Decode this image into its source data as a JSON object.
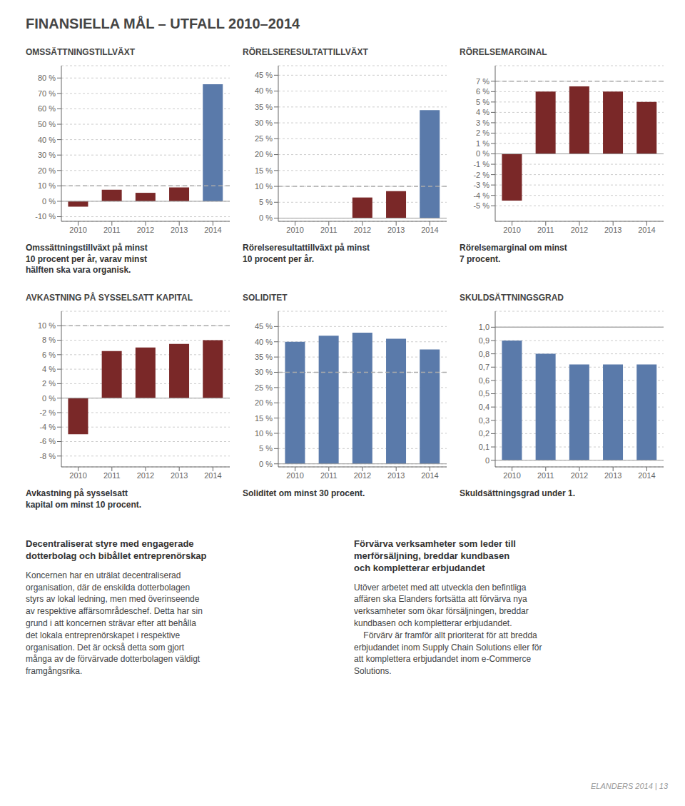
{
  "title": "FINANSIELLA MÅL – UTFALL 2010–2014",
  "chart_data": [
    {
      "type": "bar",
      "title": "OMSSÄTTNINGSTILLVÄXT",
      "subtitle": "Omssättningstillväxt på minst\n10 procent per år, varav minst\nhälften ska vara organisk.",
      "categories": [
        "2010",
        "2011",
        "2012",
        "2013",
        "2014"
      ],
      "values": [
        -3.5,
        7.5,
        5.5,
        9.0,
        76.0
      ],
      "colors": [
        "#7a2828",
        "#7a2828",
        "#7a2828",
        "#7a2828",
        "#5a7aaa"
      ],
      "ylim": [
        -13,
        88
      ],
      "yticks": [
        {
          "value": -10,
          "label": "-10 %"
        },
        {
          "value": 0,
          "label": "0 %"
        },
        {
          "value": 10,
          "label": "10 %"
        },
        {
          "value": 20,
          "label": "20 %"
        },
        {
          "value": 30,
          "label": "30 %"
        },
        {
          "value": 40,
          "label": "40 %"
        },
        {
          "value": 50,
          "label": "50 %"
        },
        {
          "value": 60,
          "label": "60 %"
        },
        {
          "value": 70,
          "label": "70 %"
        },
        {
          "value": 80,
          "label": "80 %"
        }
      ],
      "target_line": {
        "value": 10,
        "line_style": "dashed",
        "color": "#aaaaaa"
      },
      "grid": true
    },
    {
      "type": "bar",
      "title": "RÖRELSERESULTATTILLVÄXT",
      "subtitle": "Rörelseresultattillväxt på minst\n10 procent per år.",
      "categories": [
        "2010",
        "2011",
        "2012",
        "2013",
        "2014"
      ],
      "values": [
        0,
        0,
        6.5,
        8.5,
        34.0
      ],
      "colors": [
        "#7a2828",
        "#7a2828",
        "#7a2828",
        "#7a2828",
        "#5a7aaa"
      ],
      "ylim": [
        -1,
        48
      ],
      "yticks": [
        {
          "value": 0,
          "label": "0 %"
        },
        {
          "value": 5,
          "label": "5 %"
        },
        {
          "value": 10,
          "label": "10 %"
        },
        {
          "value": 15,
          "label": "15 %"
        },
        {
          "value": 20,
          "label": "20 %"
        },
        {
          "value": 25,
          "label": "25 %"
        },
        {
          "value": 30,
          "label": "30 %"
        },
        {
          "value": 35,
          "label": "35 %"
        },
        {
          "value": 40,
          "label": "40 %"
        },
        {
          "value": 45,
          "label": "45 %"
        }
      ],
      "target_line": {
        "value": 10,
        "line_style": "dashed",
        "color": "#aaaaaa"
      },
      "grid": true
    },
    {
      "type": "bar",
      "title": "RÖRELSEMARGINAL",
      "subtitle": "Rörelsemarginal om minst\n7 procent.",
      "categories": [
        "2010",
        "2011",
        "2012",
        "2013",
        "2014"
      ],
      "values": [
        -4.5,
        6.0,
        6.5,
        6.0,
        5.0
      ],
      "colors": [
        "#7a2828",
        "#7a2828",
        "#7a2828",
        "#7a2828",
        "#7a2828"
      ],
      "ylim": [
        -6.5,
        8.5
      ],
      "yticks": [
        {
          "value": -5,
          "label": "-5 %"
        },
        {
          "value": -4,
          "label": "-4 %"
        },
        {
          "value": -3,
          "label": "-3 %"
        },
        {
          "value": -2,
          "label": "-2 %"
        },
        {
          "value": -1,
          "label": "-1 %"
        },
        {
          "value": 0,
          "label": "0 %"
        },
        {
          "value": 1,
          "label": "1 %"
        },
        {
          "value": 2,
          "label": "2 %"
        },
        {
          "value": 3,
          "label": "3 %"
        },
        {
          "value": 4,
          "label": "4 %"
        },
        {
          "value": 5,
          "label": "5 %"
        },
        {
          "value": 6,
          "label": "6 %"
        },
        {
          "value": 7,
          "label": "7 %"
        }
      ],
      "target_line": {
        "value": 7,
        "line_style": "dashed",
        "color": "#aaaaaa"
      },
      "grid": true
    },
    {
      "type": "bar",
      "title": "AVKASTNING PÅ SYSSELSATT KAPITAL",
      "subtitle": "Avkastning på sysselsatt\nkapital om minst 10 procent.",
      "categories": [
        "2010",
        "2011",
        "2012",
        "2013",
        "2014"
      ],
      "values": [
        -5.0,
        6.5,
        7.0,
        7.5,
        8.0
      ],
      "colors": [
        "#7a2828",
        "#7a2828",
        "#7a2828",
        "#7a2828",
        "#7a2828"
      ],
      "ylim": [
        -9.5,
        12
      ],
      "yticks": [
        {
          "value": -8,
          "label": "-8 %"
        },
        {
          "value": -6,
          "label": "-6 %"
        },
        {
          "value": -4,
          "label": "-4 %"
        },
        {
          "value": -2,
          "label": "-2 %"
        },
        {
          "value": 0,
          "label": "0 %"
        },
        {
          "value": 2,
          "label": "2 %"
        },
        {
          "value": 4,
          "label": "4 %"
        },
        {
          "value": 6,
          "label": "6 %"
        },
        {
          "value": 8,
          "label": "8 %"
        },
        {
          "value": 10,
          "label": "10 %"
        }
      ],
      "target_line": {
        "value": 10,
        "line_style": "dashed",
        "color": "#aaaaaa"
      },
      "grid": true
    },
    {
      "type": "bar",
      "title": "SOLIDITET",
      "subtitle": "Soliditet om minst 30 procent.",
      "categories": [
        "2010",
        "2011",
        "2012",
        "2013",
        "2014"
      ],
      "values": [
        40.0,
        42.0,
        43.0,
        41.0,
        37.5
      ],
      "colors": [
        "#5a7aaa",
        "#5a7aaa",
        "#5a7aaa",
        "#5a7aaa",
        "#5a7aaa"
      ],
      "ylim": [
        -1,
        50
      ],
      "yticks": [
        {
          "value": 0,
          "label": "0 %"
        },
        {
          "value": 5,
          "label": "5 %"
        },
        {
          "value": 10,
          "label": "10 %"
        },
        {
          "value": 15,
          "label": "15 %"
        },
        {
          "value": 20,
          "label": "20 %"
        },
        {
          "value": 25,
          "label": "25 %"
        },
        {
          "value": 30,
          "label": "30 %"
        },
        {
          "value": 35,
          "label": "35 %"
        },
        {
          "value": 40,
          "label": "40 %"
        },
        {
          "value": 45,
          "label": "45 %"
        }
      ],
      "target_line": {
        "value": 30,
        "line_style": "dashed",
        "color": "#aaaaaa"
      },
      "grid": true
    },
    {
      "type": "bar",
      "title": "SKULDSÄTTNINGSGRAD",
      "subtitle": "Skuldsättningsgrad under 1.",
      "categories": [
        "2010",
        "2011",
        "2012",
        "2013",
        "2014"
      ],
      "values": [
        0.9,
        0.8,
        0.72,
        0.72,
        0.72
      ],
      "colors": [
        "#5a7aaa",
        "#5a7aaa",
        "#5a7aaa",
        "#5a7aaa",
        "#5a7aaa"
      ],
      "ylim": [
        -0.05,
        1.12
      ],
      "yticks": [
        0,
        {
          "value": 0.1,
          "label": "0,1"
        },
        {
          "value": 0.2,
          "label": "0,2"
        },
        {
          "value": 0.3,
          "label": "0,3"
        },
        {
          "value": 0.4,
          "label": "0,4"
        },
        {
          "value": 0.5,
          "label": "0,5"
        },
        {
          "value": 0.6,
          "label": "0,6"
        },
        {
          "value": 0.7,
          "label": "0,7"
        },
        {
          "value": 0.8,
          "label": "0,8"
        },
        {
          "value": 0.9,
          "label": "0,9"
        },
        {
          "value": 1.0,
          "label": "1,0"
        }
      ],
      "target_line": {
        "value": 1.0,
        "line_style": "solid",
        "color": "#aaaaaa"
      },
      "grid": true
    }
  ],
  "text_blocks": [
    {
      "title": "Decentraliserat styre med engagerade\ndotterbolag och bibållet entreprenörskap",
      "body": "Koncernen har en uträlat decentraliserad\norganisation, där de enskilda dotterbolagen\nstyrs av lokal ledning, men med överinseende\nav respektive affärsområdeschef. Detta har sin\ngrund i att koncernen strävar efter att behålla\ndet lokala entreprenörskapet i respektive\norganisation. Det är också detta som gjort\nmånga av de förvärvade dotterbolagen väldigt\nframgångsrika."
    },
    {
      "title": "Förvärva verksamheter som leder till\nmerförsäljning, breddar kundbasen\noch kompletterar erbjudandet",
      "body": "Utöver arbetet med att utveckla den befintliga\naffären ska Elanders fortsätta att förvärva nya\nverksamheter som ökar försäljningen, breddar\nkundbasen och kompletterar erbjudandet.\n    Förvärv är framför allt prioriterat för att bredda\nerbjudandet inom Supply Chain Solutions eller för\natt komplettera erbjudandet inom e-Commerce\nSolutions."
    }
  ],
  "footer": "ELANDERS 2014 | 13"
}
